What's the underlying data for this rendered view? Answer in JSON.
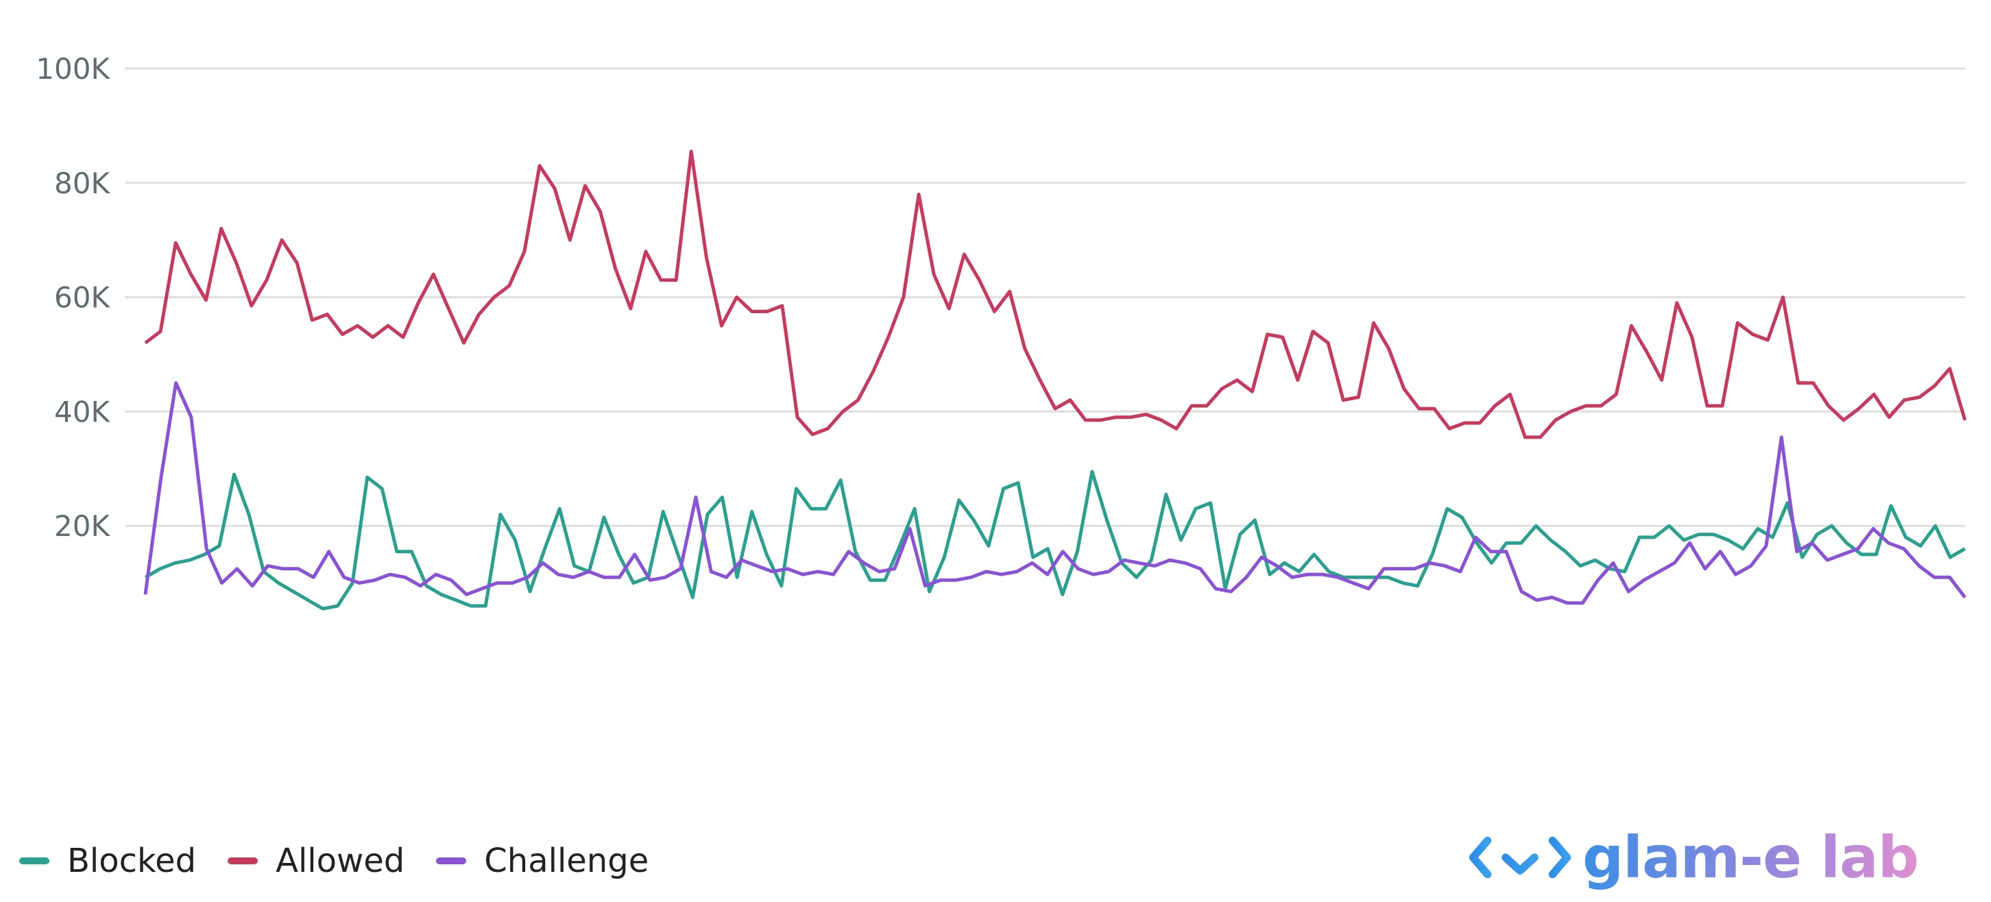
{
  "chart_data": {
    "type": "line",
    "y_ticks": [
      "100K",
      "80K",
      "60K",
      "40K",
      "20K"
    ],
    "ylim": [
      0,
      100000
    ],
    "grid": true,
    "legend_position": "bottom-left",
    "series": [
      {
        "name": "Blocked",
        "color": "#2aa18e",
        "values": [
          11000,
          12500,
          13500,
          14000,
          15000,
          16500,
          29000,
          22000,
          12000,
          10000,
          8500,
          7000,
          5500,
          6000,
          10000,
          28500,
          26500,
          15500,
          15500,
          9500,
          8000,
          7000,
          6000,
          6000,
          22000,
          17500,
          8500,
          16000,
          23000,
          13000,
          12000,
          21500,
          15000,
          10000,
          11000,
          22500,
          15000,
          7500,
          22000,
          25000,
          11000,
          22500,
          15000,
          9500,
          26500,
          23000,
          23000,
          28000,
          15500,
          10500,
          10500,
          16500,
          23000,
          8500,
          14500,
          24500,
          21000,
          16500,
          26500,
          27500,
          14500,
          16000,
          8000,
          15500,
          29500,
          21000,
          13500,
          11000,
          14000,
          25500,
          17500,
          23000,
          24000,
          9000,
          18500,
          21000,
          11500,
          13500,
          12000,
          15000,
          12000,
          11000,
          11000,
          11000,
          11000,
          10000,
          9500,
          15000,
          23000,
          21500,
          17000,
          13500,
          17000,
          17000,
          20000,
          17500,
          15500,
          13000,
          14000,
          12500,
          12000,
          18000,
          18000,
          20000,
          17500,
          18500,
          18500,
          17500,
          16000,
          19500,
          18000,
          24000,
          14500,
          18500,
          20000,
          17000,
          15000,
          15000,
          23500,
          18000,
          16500,
          20000,
          14500,
          16000
        ]
      },
      {
        "name": "Allowed",
        "color": "#c7395f",
        "values": [
          52000,
          54000,
          69500,
          64000,
          59500,
          72000,
          66000,
          58500,
          63000,
          70000,
          66000,
          56000,
          57000,
          53500,
          55000,
          53000,
          55000,
          53000,
          59000,
          64000,
          58000,
          52000,
          57000,
          60000,
          62000,
          68000,
          83000,
          79000,
          70000,
          79500,
          75000,
          65000,
          58000,
          68000,
          63000,
          63000,
          85500,
          67000,
          55000,
          60000,
          57500,
          57500,
          58500,
          39000,
          36000,
          37000,
          40000,
          42000,
          47000,
          53000,
          60000,
          78000,
          64000,
          58000,
          67500,
          63000,
          57500,
          61000,
          51000,
          45500,
          40500,
          42000,
          38500,
          38500,
          39000,
          39000,
          39500,
          38500,
          37000,
          41000,
          41000,
          44000,
          45500,
          43500,
          53500,
          53000,
          45500,
          54000,
          52000,
          42000,
          42500,
          55500,
          51000,
          44000,
          40500,
          40500,
          37000,
          38000,
          38000,
          41000,
          43000,
          35500,
          35500,
          38500,
          40000,
          41000,
          41000,
          43000,
          55000,
          50500,
          45500,
          59000,
          53000,
          41000,
          41000,
          55500,
          53500,
          52500,
          60000,
          45000,
          45000,
          41000,
          38500,
          40500,
          43000,
          39000,
          42000,
          42500,
          44500,
          47500,
          38500
        ]
      },
      {
        "name": "Challenge",
        "color": "#8a52d6",
        "values": [
          8000,
          28000,
          45000,
          39000,
          16000,
          10000,
          12500,
          9500,
          13000,
          12500,
          12500,
          11000,
          15500,
          11000,
          10000,
          10500,
          11500,
          11000,
          9500,
          11500,
          10500,
          8000,
          9000,
          10000,
          10000,
          11000,
          13500,
          11500,
          11000,
          12000,
          11000,
          11000,
          15000,
          10500,
          11000,
          12500,
          25000,
          12000,
          11000,
          14000,
          13000,
          12000,
          12500,
          11500,
          12000,
          11500,
          15500,
          13500,
          12000,
          12500,
          19500,
          9500,
          10500,
          10500,
          11000,
          12000,
          11500,
          12000,
          13500,
          11500,
          15500,
          12500,
          11500,
          12000,
          14000,
          13500,
          13000,
          14000,
          13500,
          12500,
          9000,
          8500,
          11000,
          14500,
          13000,
          11000,
          11500,
          11500,
          11000,
          10000,
          9000,
          12500,
          12500,
          12500,
          13500,
          13000,
          12000,
          18000,
          15500,
          15500,
          8500,
          7000,
          7500,
          6500,
          6500,
          10500,
          13500,
          8500,
          10500,
          12000,
          13500,
          17000,
          12500,
          15500,
          11500,
          13000,
          16500,
          35500,
          15500,
          17000,
          14000,
          15000,
          16000,
          19500,
          17000,
          16000,
          13000,
          11000,
          11000,
          7500
        ]
      }
    ]
  },
  "legend": [
    {
      "label": "Blocked",
      "color": "#2aa18e"
    },
    {
      "label": "Allowed",
      "color": "#c7395f"
    },
    {
      "label": "Challenge",
      "color": "#8a52d6"
    }
  ],
  "logo": {
    "text": "glam-e lab",
    "icon": "code-download-icon"
  }
}
